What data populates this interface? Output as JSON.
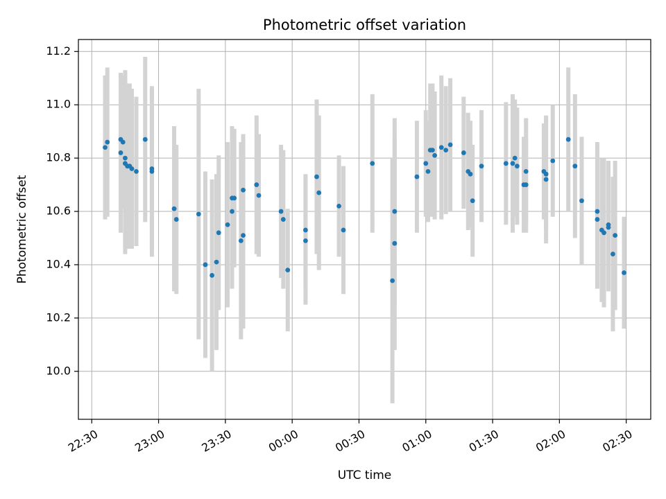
{
  "chart_data": {
    "type": "scatter",
    "title": "Photometric offset variation",
    "xlabel": "UTC time",
    "ylabel": "Photometric offset",
    "x_ticks": [
      "22:30",
      "23:00",
      "23:30",
      "00:00",
      "00:30",
      "01:00",
      "01:30",
      "02:00",
      "02:30"
    ],
    "y_ticks": [
      "10.0",
      "10.2",
      "10.4",
      "10.6",
      "10.8",
      "11.0",
      "11.2"
    ],
    "x_range": [
      "22:24",
      "02:41"
    ],
    "ylim": [
      9.82,
      11.245
    ],
    "grid": true,
    "colors": {
      "point": "#1f77b4",
      "errorbar": "#d3d3d3",
      "grid": "#b0b0b0"
    },
    "series": [
      {
        "points": [
          {
            "x": "22:36",
            "y": 10.84,
            "err": 0.27
          },
          {
            "x": "22:37",
            "y": 10.86,
            "err": 0.28
          },
          {
            "x": "22:43",
            "y": 10.82,
            "err": 0.3
          },
          {
            "x": "22:43",
            "y": 10.87,
            "err": 0.25
          },
          {
            "x": "22:44",
            "y": 10.86,
            "err": 0.25
          },
          {
            "x": "22:45",
            "y": 10.8,
            "err": 0.33
          },
          {
            "x": "22:45",
            "y": 10.78,
            "err": 0.34
          },
          {
            "x": "22:46",
            "y": 10.77,
            "err": 0.31
          },
          {
            "x": "22:47",
            "y": 10.77,
            "err": 0.31
          },
          {
            "x": "22:48",
            "y": 10.76,
            "err": 0.3
          },
          {
            "x": "22:50",
            "y": 10.75,
            "err": 0.28
          },
          {
            "x": "22:54",
            "y": 10.87,
            "err": 0.31
          },
          {
            "x": "22:57",
            "y": 10.75,
            "err": 0.32
          },
          {
            "x": "22:57",
            "y": 10.76,
            "err": 0.3
          },
          {
            "x": "23:07",
            "y": 10.61,
            "err": 0.31
          },
          {
            "x": "23:08",
            "y": 10.57,
            "err": 0.28
          },
          {
            "x": "23:18",
            "y": 10.59,
            "err": 0.47
          },
          {
            "x": "23:21",
            "y": 10.4,
            "err": 0.35
          },
          {
            "x": "23:24",
            "y": 10.36,
            "err": 0.36
          },
          {
            "x": "23:26",
            "y": 10.41,
            "err": 0.33
          },
          {
            "x": "23:27",
            "y": 10.52,
            "err": 0.29
          },
          {
            "x": "23:31",
            "y": 10.55,
            "err": 0.31
          },
          {
            "x": "23:33",
            "y": 10.6,
            "err": 0.29
          },
          {
            "x": "23:33",
            "y": 10.65,
            "err": 0.27
          },
          {
            "x": "23:34",
            "y": 10.65,
            "err": 0.26
          },
          {
            "x": "23:37",
            "y": 10.49,
            "err": 0.37
          },
          {
            "x": "23:38",
            "y": 10.51,
            "err": 0.35
          },
          {
            "x": "23:38",
            "y": 10.68,
            "err": 0.21
          },
          {
            "x": "23:44",
            "y": 10.7,
            "err": 0.26
          },
          {
            "x": "23:45",
            "y": 10.66,
            "err": 0.23
          },
          {
            "x": "23:55",
            "y": 10.6,
            "err": 0.25
          },
          {
            "x": "23:56",
            "y": 10.57,
            "err": 0.26
          },
          {
            "x": "23:58",
            "y": 10.38,
            "err": 0.23
          },
          {
            "x": "00:06",
            "y": 10.49,
            "err": 0.24
          },
          {
            "x": "00:06",
            "y": 10.53,
            "err": 0.21
          },
          {
            "x": "00:11",
            "y": 10.73,
            "err": 0.29
          },
          {
            "x": "00:12",
            "y": 10.67,
            "err": 0.29
          },
          {
            "x": "00:21",
            "y": 10.62,
            "err": 0.19
          },
          {
            "x": "00:23",
            "y": 10.53,
            "err": 0.24
          },
          {
            "x": "00:36",
            "y": 10.78,
            "err": 0.26
          },
          {
            "x": "00:45",
            "y": 10.34,
            "err": 0.46
          },
          {
            "x": "00:46",
            "y": 10.48,
            "err": 0.4
          },
          {
            "x": "00:46",
            "y": 10.6,
            "err": 0.35
          },
          {
            "x": "00:56",
            "y": 10.73,
            "err": 0.21
          },
          {
            "x": "01:00",
            "y": 10.78,
            "err": 0.2
          },
          {
            "x": "01:01",
            "y": 10.75,
            "err": 0.19
          },
          {
            "x": "01:02",
            "y": 10.83,
            "err": 0.25
          },
          {
            "x": "01:03",
            "y": 10.83,
            "err": 0.25
          },
          {
            "x": "01:04",
            "y": 10.81,
            "err": 0.24
          },
          {
            "x": "01:07",
            "y": 10.84,
            "err": 0.27
          },
          {
            "x": "01:09",
            "y": 10.83,
            "err": 0.24
          },
          {
            "x": "01:11",
            "y": 10.85,
            "err": 0.25
          },
          {
            "x": "01:17",
            "y": 10.82,
            "err": 0.21
          },
          {
            "x": "01:19",
            "y": 10.75,
            "err": 0.22
          },
          {
            "x": "01:20",
            "y": 10.74,
            "err": 0.2
          },
          {
            "x": "01:21",
            "y": 10.64,
            "err": 0.21
          },
          {
            "x": "01:25",
            "y": 10.77,
            "err": 0.21
          },
          {
            "x": "01:36",
            "y": 10.78,
            "err": 0.23
          },
          {
            "x": "01:39",
            "y": 10.78,
            "err": 0.26
          },
          {
            "x": "01:40",
            "y": 10.8,
            "err": 0.22
          },
          {
            "x": "01:41",
            "y": 10.77,
            "err": 0.22
          },
          {
            "x": "01:44",
            "y": 10.7,
            "err": 0.18
          },
          {
            "x": "01:45",
            "y": 10.7,
            "err": 0.18
          },
          {
            "x": "01:45",
            "y": 10.75,
            "err": 0.2
          },
          {
            "x": "01:53",
            "y": 10.75,
            "err": 0.18
          },
          {
            "x": "01:54",
            "y": 10.74,
            "err": 0.21
          },
          {
            "x": "01:54",
            "y": 10.72,
            "err": 0.24
          },
          {
            "x": "01:57",
            "y": 10.79,
            "err": 0.21
          },
          {
            "x": "02:04",
            "y": 10.87,
            "err": 0.27
          },
          {
            "x": "02:07",
            "y": 10.77,
            "err": 0.27
          },
          {
            "x": "02:10",
            "y": 10.64,
            "err": 0.24
          },
          {
            "x": "02:17",
            "y": 10.6,
            "err": 0.26
          },
          {
            "x": "02:17",
            "y": 10.57,
            "err": 0.26
          },
          {
            "x": "02:19",
            "y": 10.53,
            "err": 0.27
          },
          {
            "x": "02:20",
            "y": 10.52,
            "err": 0.28
          },
          {
            "x": "02:22",
            "y": 10.55,
            "err": 0.24
          },
          {
            "x": "02:22",
            "y": 10.54,
            "err": 0.24
          },
          {
            "x": "02:24",
            "y": 10.44,
            "err": 0.29
          },
          {
            "x": "02:25",
            "y": 10.51,
            "err": 0.28
          },
          {
            "x": "02:29",
            "y": 10.37,
            "err": 0.21
          }
        ]
      }
    ]
  }
}
